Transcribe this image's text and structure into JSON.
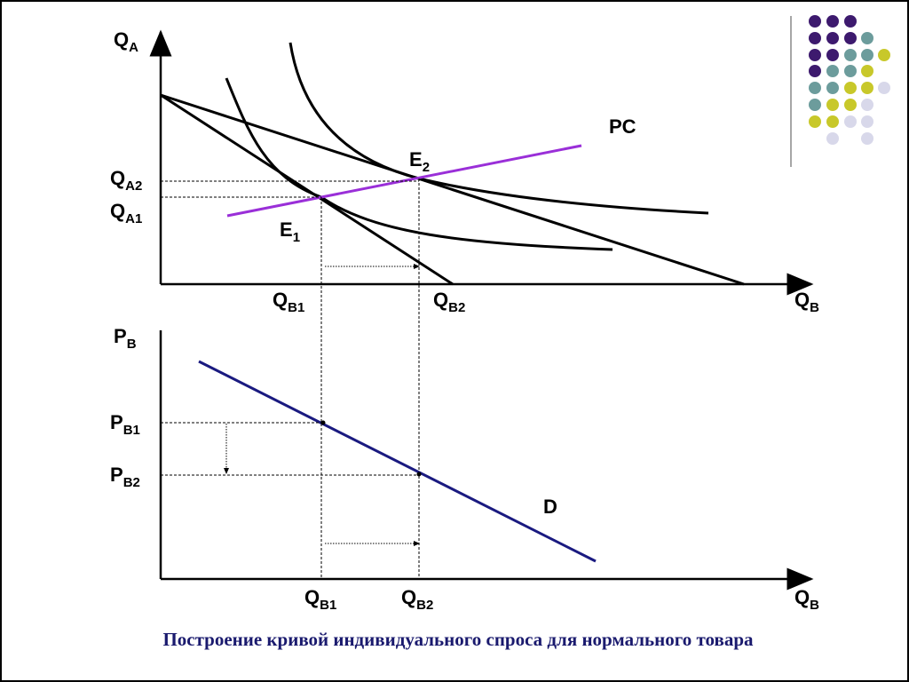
{
  "top_graph": {
    "labels": [
      {
        "base": "Q",
        "sub": "A"
      },
      {
        "base": "Q",
        "sub": "A2"
      },
      {
        "base": "Q",
        "sub": "A1"
      },
      {
        "base": "Q",
        "sub": "B1"
      },
      {
        "base": "Q",
        "sub": "B2"
      },
      {
        "base": "Q",
        "sub": "B"
      },
      {
        "base": "PC"
      },
      {
        "base": "E",
        "sub": "2"
      },
      {
        "base": "E",
        "sub": "1"
      }
    ]
  },
  "bottom_graph": {
    "labels": [
      {
        "base": "P",
        "sub": "B"
      },
      {
        "base": "P",
        "sub": "B1"
      },
      {
        "base": "P",
        "sub": "B2"
      },
      {
        "base": "Q",
        "sub": "B1"
      },
      {
        "base": "Q",
        "sub": "B2"
      },
      {
        "base": "Q",
        "sub": "B"
      },
      {
        "base": "D"
      }
    ]
  },
  "caption": "Построение кривой индивидуального спроса для нормального товара"
}
